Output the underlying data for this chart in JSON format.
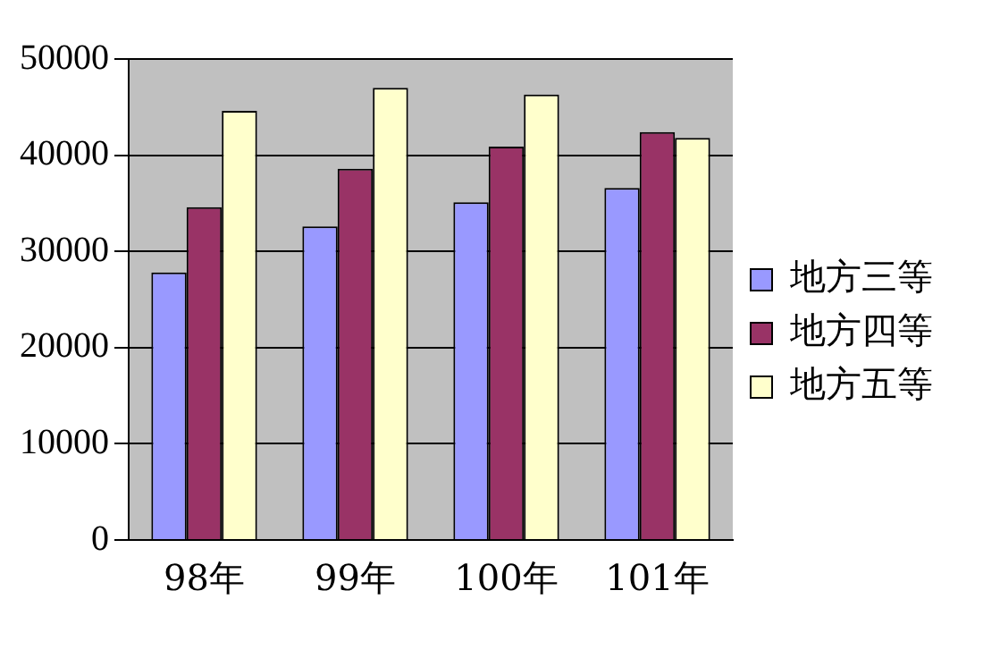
{
  "chart_data": {
    "type": "bar",
    "categories": [
      "98年",
      "99年",
      "100年",
      "101年"
    ],
    "series": [
      {
        "name": "地方三等",
        "color": "#9999ff",
        "values": [
          27800,
          32600,
          35100,
          36600
        ]
      },
      {
        "name": "地方四等",
        "color": "#993366",
        "values": [
          34600,
          38600,
          40900,
          42400
        ]
      },
      {
        "name": "地方五等",
        "color": "#ffffcc",
        "values": [
          44600,
          47000,
          46300,
          41800
        ]
      }
    ],
    "ylim": [
      0,
      50000
    ],
    "yticks": [
      0,
      10000,
      20000,
      30000,
      40000,
      50000
    ],
    "grid": "y",
    "legend": "right"
  }
}
